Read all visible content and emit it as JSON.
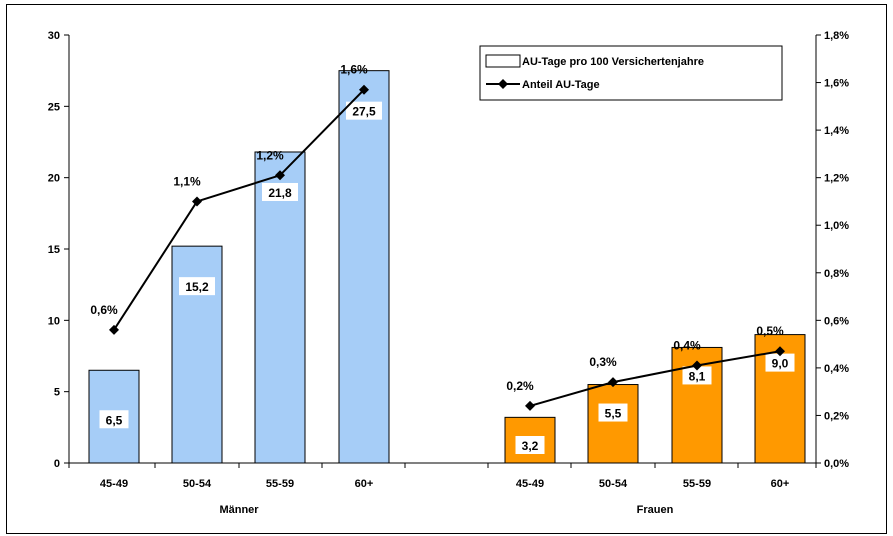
{
  "chart_data": {
    "type": "bar",
    "groups": [
      {
        "name": "Männer",
        "categories": [
          "45-49",
          "50-54",
          "55-59",
          "60+"
        ],
        "bar_values": [
          6.5,
          15.2,
          21.8,
          27.5
        ],
        "bar_labels": [
          "6,5",
          "15,2",
          "21,8",
          "27,5"
        ],
        "line_values": [
          0.6,
          1.1,
          1.2,
          1.6
        ],
        "line_labels": [
          "0,6%",
          "1,1%",
          "1,2%",
          "1,6%"
        ],
        "color": "#a6cdf7"
      },
      {
        "name": "Frauen",
        "categories": [
          "45-49",
          "50-54",
          "55-59",
          "60+"
        ],
        "bar_values": [
          3.2,
          5.5,
          8.1,
          9.0
        ],
        "bar_labels": [
          "3,2",
          "5,5",
          "8,1",
          "9,0"
        ],
        "line_values": [
          0.2,
          0.3,
          0.4,
          0.5
        ],
        "line_labels": [
          "0,2%",
          "0,3%",
          "0,4%",
          "0,5%"
        ],
        "color": "#ff9900"
      }
    ],
    "line_points": {
      "Männer": [
        0.56,
        1.1,
        1.21,
        1.57
      ],
      "Frauen": [
        0.24,
        0.34,
        0.41,
        0.47
      ]
    },
    "series": [
      {
        "name": "AU-Tage pro 100 Versichertenjahre",
        "type": "bar",
        "axis": "left"
      },
      {
        "name": "Anteil AU-Tage",
        "type": "line",
        "axis": "right",
        "color": "#000000"
      }
    ],
    "y_left": {
      "min": 0,
      "max": 30,
      "ticks": [
        "0",
        "5",
        "10",
        "15",
        "20",
        "25",
        "30"
      ]
    },
    "y_right": {
      "min": 0,
      "max": 1.8,
      "ticks": [
        "0,0%",
        "0,2%",
        "0,4%",
        "0,6%",
        "0,8%",
        "1,0%",
        "1,2%",
        "1,4%",
        "1,6%",
        "1,8%"
      ]
    },
    "grid": false,
    "legend_position": "top-right"
  }
}
